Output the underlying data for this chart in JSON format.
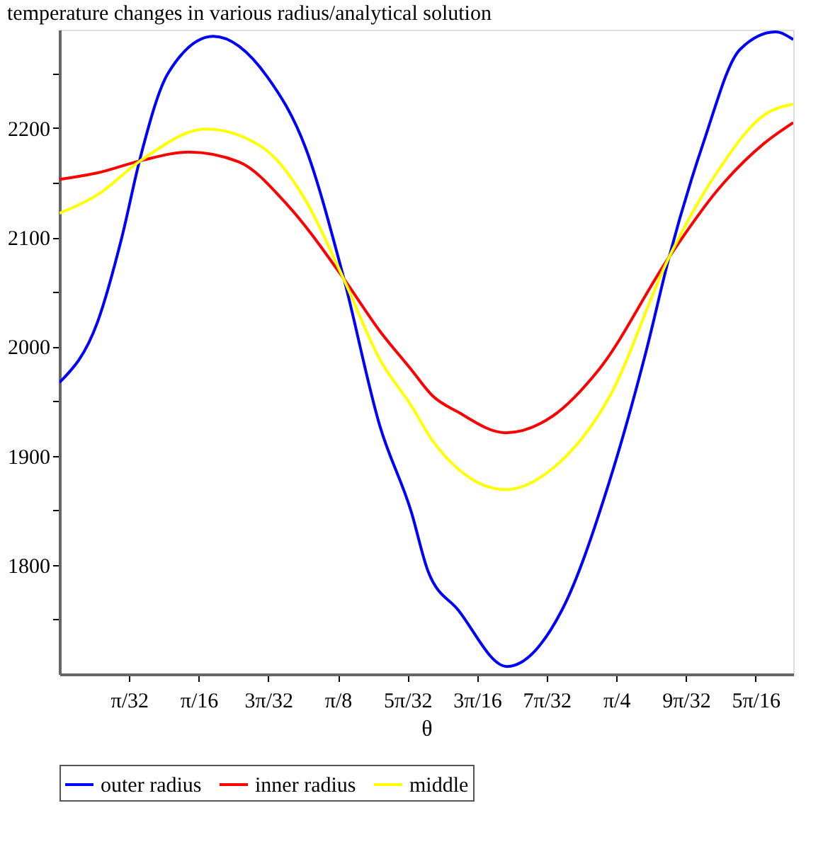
{
  "chart_data": {
    "type": "line",
    "title": "temperature changes in various radius/analytical solution",
    "xlabel": "θ",
    "xlim": [
      0,
      1.035
    ],
    "ylim": [
      1700,
      2290
    ],
    "xticks": [
      {
        "value": 0.0982,
        "label": "π/32"
      },
      {
        "value": 0.1963,
        "label": "π/16"
      },
      {
        "value": 0.2945,
        "label": "3π/32"
      },
      {
        "value": 0.3927,
        "label": "π/8"
      },
      {
        "value": 0.4909,
        "label": "5π/32"
      },
      {
        "value": 0.589,
        "label": "3π/16"
      },
      {
        "value": 0.6872,
        "label": "7π/32"
      },
      {
        "value": 0.7854,
        "label": "π/4"
      },
      {
        "value": 0.8836,
        "label": "9π/32"
      },
      {
        "value": 0.9817,
        "label": "5π/16"
      }
    ],
    "yticks": [
      {
        "value": 1750,
        "label": null
      },
      1800,
      {
        "value": 1850,
        "label": null
      },
      1900,
      {
        "value": 1950,
        "label": null
      },
      2000,
      {
        "value": 2050,
        "label": null
      },
      2100,
      {
        "value": 2150,
        "label": null
      },
      2200,
      {
        "value": 2250,
        "label": null
      }
    ],
    "grid": false,
    "legend": "bottom",
    "marker": "none",
    "line_style": "solid",
    "series": [
      {
        "name": "outer radius",
        "color": "#0000ff",
        "x": [
          0,
          0.054,
          0.088,
          0.114,
          0.153,
          0.217,
          0.293,
          0.347,
          0.4,
          0.452,
          0.496,
          0.52,
          0.562,
          0.631,
          0.709,
          0.775,
          0.828,
          0.86,
          0.908,
          0.96,
          1.01,
          1.035
        ],
        "values": [
          1967,
          2023,
          2100,
          2173,
          2250,
          2284,
          2247,
          2182,
          2065,
          1927,
          1849,
          1794,
          1759,
          1707,
          1759,
          1875,
          1997,
          2082,
          2186,
          2272,
          2288,
          2281
        ]
      },
      {
        "name": "inner radius",
        "color": "#ff0000",
        "x": [
          0,
          0.054,
          0.114,
          0.183,
          0.253,
          0.321,
          0.4,
          0.452,
          0.496,
          0.526,
          0.562,
          0.629,
          0.695,
          0.761,
          0.86,
          0.928,
          0.994,
          1.035
        ],
        "values": [
          2153,
          2159,
          2170,
          2178,
          2169,
          2130,
          2063,
          2014,
          1979,
          1955,
          1940,
          1921,
          1936,
          1979,
          2082,
          2143,
          2186,
          2205
        ]
      },
      {
        "name": "middle",
        "color": "#ffff00",
        "x": [
          0,
          0.054,
          0.114,
          0.207,
          0.287,
          0.347,
          0.4,
          0.452,
          0.496,
          0.526,
          0.562,
          0.629,
          0.695,
          0.775,
          0.86,
          0.928,
          0.994,
          1.035
        ],
        "values": [
          2122,
          2139,
          2170,
          2199,
          2182,
          2134,
          2063,
          1988,
          1946,
          1914,
          1888,
          1869,
          1888,
          1953,
          2082,
          2160,
          2212,
          2222
        ]
      }
    ]
  }
}
